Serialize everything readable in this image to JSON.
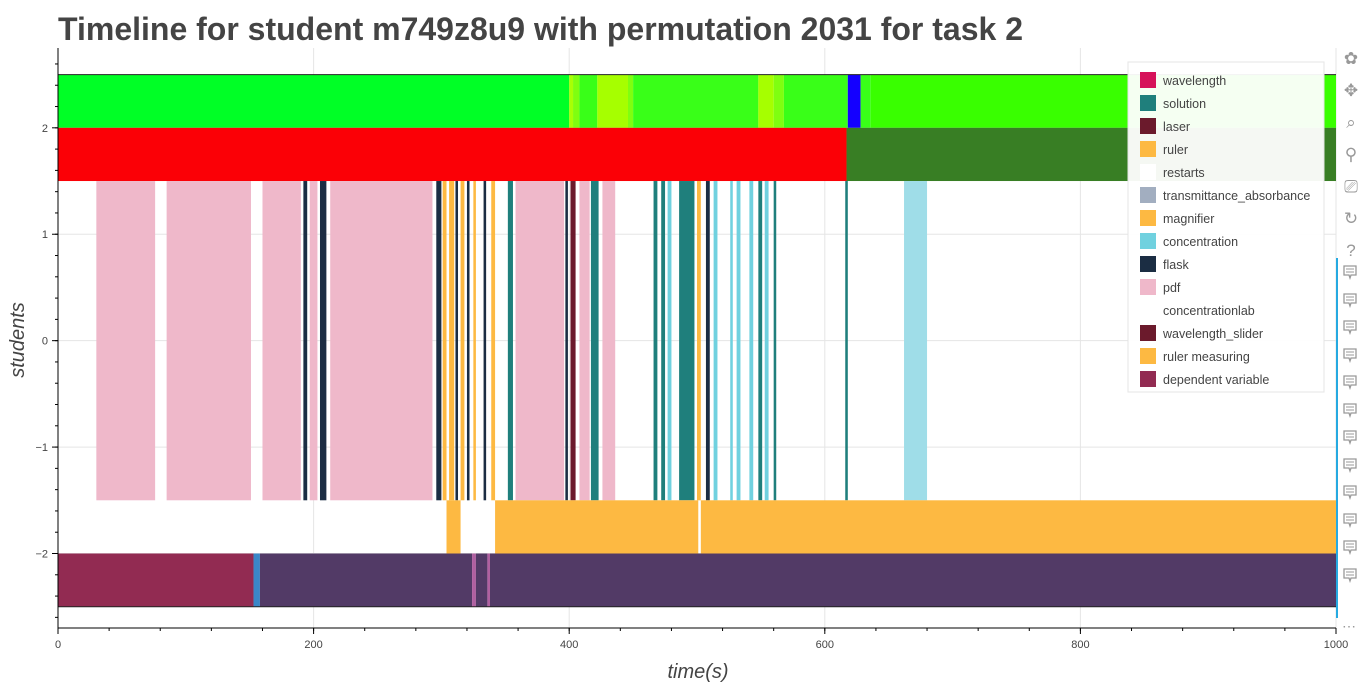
{
  "chart_data": {
    "type": "timeline",
    "title": "Timeline for student m749z8u9 with permutation 2031 for task 2",
    "xlabel": "time(s)",
    "ylabel": "students",
    "xlim": [
      0,
      1000
    ],
    "ylim": [
      -2.7,
      2.75
    ],
    "x_ticks": [
      0,
      200,
      400,
      600,
      800,
      1000
    ],
    "y_ticks": [
      -2,
      -1,
      0,
      1,
      2
    ],
    "grid": true,
    "legend_position": "top-right",
    "legend": [
      {
        "label": "wavelength",
        "color": "#d6125a"
      },
      {
        "label": "solution",
        "color": "#1f7f7c"
      },
      {
        "label": "laser",
        "color": "#6b1a2c"
      },
      {
        "label": "ruler",
        "color": "#fdb942"
      },
      {
        "label": "restarts",
        "color": "#ffffff"
      },
      {
        "label": "transmittance_absorbance",
        "color": "#a2aec0"
      },
      {
        "label": "magnifier",
        "color": "#fdb942"
      },
      {
        "label": "concentration",
        "color": "#70d1df"
      },
      {
        "label": "flask",
        "color": "#1b2d43"
      },
      {
        "label": "pdf",
        "color": "#efb8ca"
      },
      {
        "label": "concentrationlab",
        "color": "#ffffff"
      },
      {
        "label": "wavelength_slider",
        "color": "#6b1a2c"
      },
      {
        "label": "ruler measuring",
        "color": "#fdb942"
      },
      {
        "label": "dependent variable",
        "color": "#922b52"
      }
    ],
    "rows": [
      {
        "y": [
          2,
          2.5
        ],
        "segments": [
          {
            "start": 0,
            "end": 400,
            "color": "#00ff26"
          },
          {
            "start": 400,
            "end": 403,
            "color": "#a9ff05"
          },
          {
            "start": 403,
            "end": 408,
            "color": "#7fff10"
          },
          {
            "start": 408,
            "end": 422,
            "color": "#39ff18"
          },
          {
            "start": 422,
            "end": 446,
            "color": "#a6ff00"
          },
          {
            "start": 446,
            "end": 450,
            "color": "#7fff10"
          },
          {
            "start": 450,
            "end": 548,
            "color": "#39ff18"
          },
          {
            "start": 548,
            "end": 560,
            "color": "#a6ff00"
          },
          {
            "start": 560,
            "end": 568,
            "color": "#7fff10"
          },
          {
            "start": 568,
            "end": 618,
            "color": "#39ff18"
          },
          {
            "start": 618,
            "end": 628,
            "color": "#1400ff"
          },
          {
            "start": 628,
            "end": 636,
            "color": "#39ff18"
          },
          {
            "start": 636,
            "end": 1000,
            "color": "#39ff00"
          }
        ]
      },
      {
        "y": [
          1.5,
          2
        ],
        "segments": [
          {
            "start": 0,
            "end": 617,
            "color": "#fb0006"
          },
          {
            "start": 617,
            "end": 1000,
            "color": "#387e24"
          }
        ]
      },
      {
        "y": [
          -1.5,
          1.5
        ],
        "segments": [
          {
            "start": 30,
            "end": 76,
            "color": "#efb8ca"
          },
          {
            "start": 85,
            "end": 151,
            "color": "#efb8ca"
          },
          {
            "start": 160,
            "end": 190,
            "color": "#efb8ca"
          },
          {
            "start": 192,
            "end": 195,
            "color": "#1b2d43"
          },
          {
            "start": 197,
            "end": 203,
            "color": "#efb8ca"
          },
          {
            "start": 205,
            "end": 210,
            "color": "#1b2d43"
          },
          {
            "start": 213,
            "end": 293,
            "color": "#efb8ca"
          },
          {
            "start": 296,
            "end": 300,
            "color": "#1b2d43"
          },
          {
            "start": 301,
            "end": 304,
            "color": "#fdb942"
          },
          {
            "start": 306,
            "end": 310,
            "color": "#fdb942"
          },
          {
            "start": 311,
            "end": 313,
            "color": "#1b2d43"
          },
          {
            "start": 315,
            "end": 318,
            "color": "#fdb942"
          },
          {
            "start": 320,
            "end": 322,
            "color": "#1b2d43"
          },
          {
            "start": 325,
            "end": 327,
            "color": "#fdb942"
          },
          {
            "start": 333,
            "end": 335,
            "color": "#1b2d43"
          },
          {
            "start": 339,
            "end": 342,
            "color": "#fdb942"
          },
          {
            "start": 352,
            "end": 356,
            "color": "#1f7f7c"
          },
          {
            "start": 358,
            "end": 396,
            "color": "#efb8ca"
          },
          {
            "start": 397,
            "end": 399,
            "color": "#1b2d43"
          },
          {
            "start": 401,
            "end": 405,
            "color": "#6b1a2c"
          },
          {
            "start": 408,
            "end": 416,
            "color": "#efb8ca"
          },
          {
            "start": 417,
            "end": 423,
            "color": "#1f7f7c"
          },
          {
            "start": 426,
            "end": 436,
            "color": "#efb8ca"
          },
          {
            "start": 466,
            "end": 469,
            "color": "#1f7f7c"
          },
          {
            "start": 472,
            "end": 475,
            "color": "#1f7f7c"
          },
          {
            "start": 477,
            "end": 480,
            "color": "#70d1df"
          },
          {
            "start": 486,
            "end": 498,
            "color": "#1f7f7c"
          },
          {
            "start": 500,
            "end": 503,
            "color": "#fdb942"
          },
          {
            "start": 507,
            "end": 510,
            "color": "#1b2d43"
          },
          {
            "start": 513,
            "end": 516,
            "color": "#70d1df"
          },
          {
            "start": 526,
            "end": 528,
            "color": "#70d1df"
          },
          {
            "start": 531,
            "end": 534,
            "color": "#70d1df"
          },
          {
            "start": 541,
            "end": 544,
            "color": "#70d1df"
          },
          {
            "start": 548,
            "end": 551,
            "color": "#1f7f7c"
          },
          {
            "start": 553,
            "end": 556,
            "color": "#70d1df"
          },
          {
            "start": 560,
            "end": 562,
            "color": "#1f7f7c"
          },
          {
            "start": 616,
            "end": 618,
            "color": "#1f7f7c"
          },
          {
            "start": 662,
            "end": 680,
            "color": "#9fdde8"
          }
        ]
      },
      {
        "y": [
          -2,
          -1.5
        ],
        "segments": [
          {
            "start": 304,
            "end": 315,
            "color": "#fdb942"
          },
          {
            "start": 342,
            "end": 501,
            "color": "#fdb942"
          },
          {
            "start": 503,
            "end": 1000,
            "color": "#fdb942"
          }
        ]
      },
      {
        "y": [
          -2.5,
          -2
        ],
        "segments": [
          {
            "start": 0,
            "end": 153,
            "color": "#922b52"
          },
          {
            "start": 153,
            "end": 158,
            "color": "#3a87c8"
          },
          {
            "start": 158,
            "end": 324,
            "color": "#523a66"
          },
          {
            "start": 324,
            "end": 327,
            "color": "#b05fa0"
          },
          {
            "start": 327,
            "end": 336,
            "color": "#523a66"
          },
          {
            "start": 336,
            "end": 338,
            "color": "#b05fa0"
          },
          {
            "start": 338,
            "end": 1000,
            "color": "#523a66"
          }
        ]
      }
    ]
  },
  "toolbar": [
    {
      "name": "bokeh-logo-icon",
      "glyph": "✿"
    },
    {
      "name": "pan-icon",
      "glyph": "✥"
    },
    {
      "name": "box-zoom-icon",
      "glyph": "⌕"
    },
    {
      "name": "wheel-zoom-icon",
      "glyph": "⚲"
    },
    {
      "name": "save-icon",
      "glyph": "⎚"
    },
    {
      "name": "reset-icon",
      "glyph": "↻"
    },
    {
      "name": "help-icon",
      "glyph": "?"
    }
  ],
  "toolbar_more": "⋯"
}
